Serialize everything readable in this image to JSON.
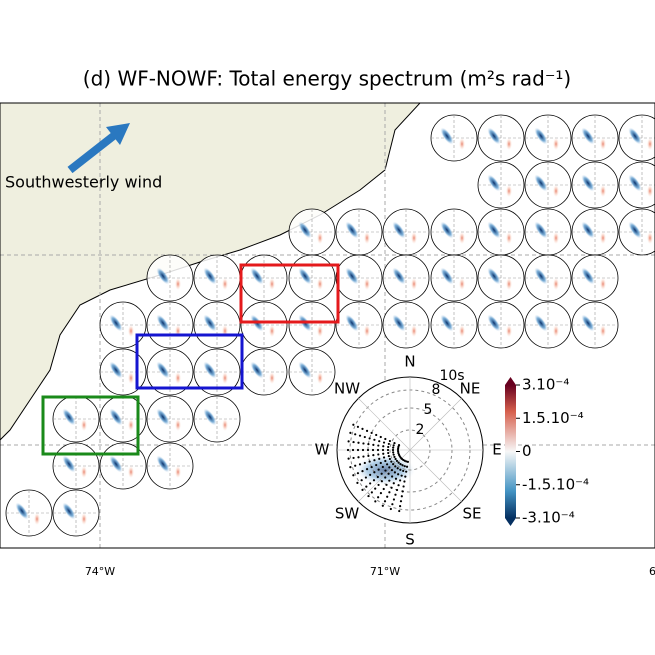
{
  "title": "(d) WF-NOWF: Total energy spectrum (m²s rad⁻¹)",
  "annotation": "Southwesterly wind",
  "longitude_labels": [
    "74°W",
    "71°W",
    "6"
  ],
  "polar_legend": {
    "directions": [
      "N",
      "NE",
      "E",
      "SE",
      "S",
      "SW",
      "W",
      "NW"
    ],
    "period_labels": [
      "2",
      "5",
      "8",
      "10s"
    ]
  },
  "colorbar": {
    "lim": [
      -0.0003,
      0.0003
    ],
    "ticks": [
      {
        "value": 0.0003,
        "label": "3.10⁻⁴"
      },
      {
        "value": 0.00015,
        "label": "1.5.10⁻⁴"
      },
      0,
      {
        "value": -0.00015,
        "label": "-1.5.10⁻⁴"
      },
      {
        "value": -0.0003,
        "label": "-3.10⁻⁴"
      }
    ]
  }
}
